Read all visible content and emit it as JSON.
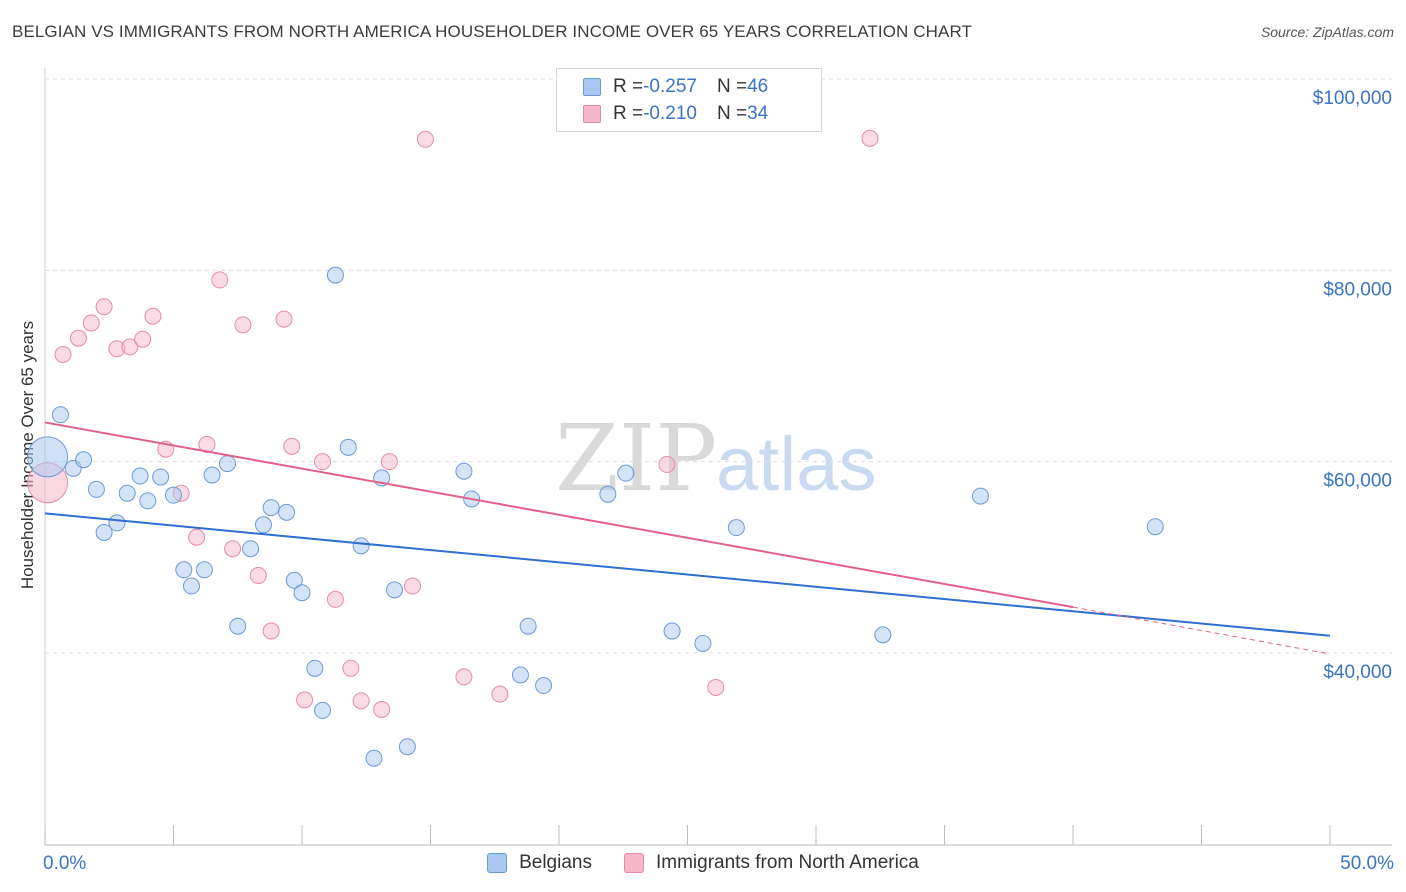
{
  "title": "BELGIAN VS IMMIGRANTS FROM NORTH AMERICA HOUSEHOLDER INCOME OVER 65 YEARS CORRELATION CHART",
  "source": "Source: ZipAtlas.com",
  "watermark": {
    "zip": "ZIP",
    "atlas": "atlas"
  },
  "legend_top": {
    "rows": [
      {
        "r_label": "R = ",
        "r_value": "-0.257",
        "n_label": "N = ",
        "n_value": "46"
      },
      {
        "r_label": "R = ",
        "r_value": "-0.210",
        "n_label": "N = ",
        "n_value": "34"
      }
    ]
  },
  "colors": {
    "blue_fill": "#a9c8f0",
    "blue_stroke": "#6a9ad6",
    "blue_line": "#2e6fd0",
    "pink_fill": "#f5b8cb",
    "pink_stroke": "#e68aa6",
    "pink_line": "#e0608a",
    "axis_label": "#3a74c4",
    "grid": "#dcdcdc"
  },
  "chart_data": {
    "type": "scatter",
    "title": "BELGIAN VS IMMIGRANTS FROM NORTH AMERICA HOUSEHOLDER INCOME OVER 65 YEARS CORRELATION CHART",
    "xlabel": "",
    "ylabel": "Householder Income Over 65 years",
    "xlim": [
      0,
      50
    ],
    "ylim": [
      21000,
      103000
    ],
    "x_ticks": [
      "0.0%",
      "50.0%"
    ],
    "y_ticks": [
      {
        "value": 40000,
        "label": "$40,000"
      },
      {
        "value": 60000,
        "label": "$60,000"
      },
      {
        "value": 80000,
        "label": "$80,000"
      },
      {
        "value": 100000,
        "label": "$100,000"
      }
    ],
    "grid": true,
    "legend_position": "bottom",
    "series": [
      {
        "name": "Belgians",
        "r": -0.257,
        "n": 46,
        "trend": {
          "x": [
            0,
            50
          ],
          "y": [
            54600,
            41800
          ]
        },
        "points": [
          {
            "x": 0.1,
            "y": 60500,
            "big": true
          },
          {
            "x": 0.6,
            "y": 64900
          },
          {
            "x": 1.1,
            "y": 59300
          },
          {
            "x": 1.5,
            "y": 60200
          },
          {
            "x": 2.0,
            "y": 57100
          },
          {
            "x": 2.3,
            "y": 52600
          },
          {
            "x": 2.8,
            "y": 53600
          },
          {
            "x": 3.2,
            "y": 56700
          },
          {
            "x": 3.7,
            "y": 58500
          },
          {
            "x": 4.0,
            "y": 55900
          },
          {
            "x": 4.5,
            "y": 58400
          },
          {
            "x": 5.0,
            "y": 56500
          },
          {
            "x": 5.4,
            "y": 48700
          },
          {
            "x": 5.7,
            "y": 47000
          },
          {
            "x": 6.2,
            "y": 48700
          },
          {
            "x": 6.5,
            "y": 58600
          },
          {
            "x": 7.1,
            "y": 59800
          },
          {
            "x": 7.5,
            "y": 42800
          },
          {
            "x": 8.0,
            "y": 50900
          },
          {
            "x": 8.5,
            "y": 53400
          },
          {
            "x": 8.8,
            "y": 55200
          },
          {
            "x": 9.4,
            "y": 54700
          },
          {
            "x": 9.7,
            "y": 47600
          },
          {
            "x": 10.0,
            "y": 46300
          },
          {
            "x": 10.5,
            "y": 38400
          },
          {
            "x": 10.8,
            "y": 34000
          },
          {
            "x": 11.3,
            "y": 79500
          },
          {
            "x": 11.8,
            "y": 61500
          },
          {
            "x": 12.3,
            "y": 51200
          },
          {
            "x": 12.8,
            "y": 29000
          },
          {
            "x": 13.1,
            "y": 58300
          },
          {
            "x": 13.6,
            "y": 46600
          },
          {
            "x": 14.1,
            "y": 30200
          },
          {
            "x": 16.3,
            "y": 59000
          },
          {
            "x": 16.6,
            "y": 56100
          },
          {
            "x": 18.5,
            "y": 37700
          },
          {
            "x": 18.8,
            "y": 42800
          },
          {
            "x": 19.4,
            "y": 36600
          },
          {
            "x": 21.9,
            "y": 56600
          },
          {
            "x": 22.6,
            "y": 58800
          },
          {
            "x": 24.4,
            "y": 42300
          },
          {
            "x": 25.6,
            "y": 41000
          },
          {
            "x": 26.9,
            "y": 53100
          },
          {
            "x": 32.6,
            "y": 41900
          },
          {
            "x": 36.4,
            "y": 56400
          },
          {
            "x": 43.2,
            "y": 53200
          }
        ]
      },
      {
        "name": "Immigrants from North America",
        "r": -0.21,
        "n": 34,
        "trend": {
          "x": [
            0,
            40
          ],
          "y": [
            64100,
            44800
          ]
        },
        "trend_dashed": {
          "x": [
            40,
            50
          ],
          "y": [
            44800,
            39900
          ]
        },
        "points": [
          {
            "x": 0.1,
            "y": 57800,
            "big": true
          },
          {
            "x": 0.7,
            "y": 71200
          },
          {
            "x": 1.3,
            "y": 72900
          },
          {
            "x": 1.8,
            "y": 74500
          },
          {
            "x": 2.3,
            "y": 76200
          },
          {
            "x": 2.8,
            "y": 71800
          },
          {
            "x": 3.3,
            "y": 72000
          },
          {
            "x": 3.8,
            "y": 72800
          },
          {
            "x": 4.2,
            "y": 75200
          },
          {
            "x": 4.7,
            "y": 61300
          },
          {
            "x": 5.3,
            "y": 56700
          },
          {
            "x": 5.9,
            "y": 52100
          },
          {
            "x": 6.3,
            "y": 61800
          },
          {
            "x": 6.8,
            "y": 79000
          },
          {
            "x": 7.3,
            "y": 50900
          },
          {
            "x": 7.7,
            "y": 74300
          },
          {
            "x": 8.3,
            "y": 48100
          },
          {
            "x": 8.8,
            "y": 42300
          },
          {
            "x": 9.3,
            "y": 74900
          },
          {
            "x": 9.6,
            "y": 61600
          },
          {
            "x": 10.1,
            "y": 35100
          },
          {
            "x": 10.8,
            "y": 60000
          },
          {
            "x": 11.3,
            "y": 45600
          },
          {
            "x": 11.9,
            "y": 38400
          },
          {
            "x": 12.3,
            "y": 35000
          },
          {
            "x": 13.1,
            "y": 34100
          },
          {
            "x": 13.4,
            "y": 60000
          },
          {
            "x": 14.3,
            "y": 47000
          },
          {
            "x": 14.8,
            "y": 93700
          },
          {
            "x": 16.3,
            "y": 37500
          },
          {
            "x": 17.7,
            "y": 35700
          },
          {
            "x": 24.2,
            "y": 59700
          },
          {
            "x": 26.1,
            "y": 36400
          },
          {
            "x": 32.1,
            "y": 93800
          }
        ]
      }
    ]
  }
}
